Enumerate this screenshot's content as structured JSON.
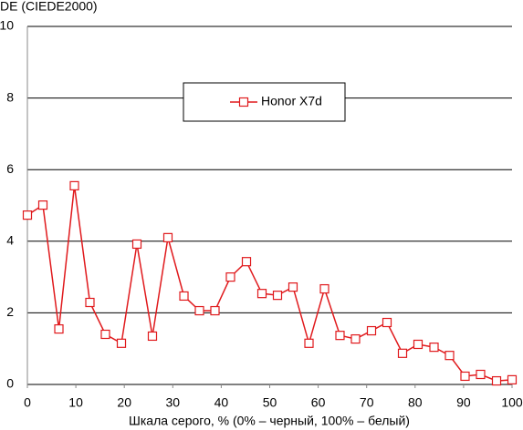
{
  "chart_data": {
    "type": "line",
    "y_label": "DE (CIEDE2000)",
    "x_label": "Шкала серого, % (0% – черный, 100% – белый)",
    "x": [
      0,
      3.2,
      6.5,
      9.7,
      12.9,
      16.1,
      19.4,
      22.6,
      25.8,
      29.0,
      32.3,
      35.5,
      38.7,
      41.9,
      45.2,
      48.4,
      51.6,
      54.8,
      58.1,
      61.3,
      64.5,
      67.7,
      71.0,
      74.2,
      77.4,
      80.6,
      83.9,
      87.1,
      90.3,
      93.5,
      96.8,
      100
    ],
    "series": [
      {
        "name": "Honor X7d",
        "color": "#e0191c",
        "values": [
          4.73,
          5.01,
          1.55,
          5.55,
          2.29,
          1.4,
          1.15,
          3.92,
          1.35,
          4.1,
          2.47,
          2.06,
          2.06,
          3.0,
          3.43,
          2.54,
          2.49,
          2.72,
          1.15,
          2.67,
          1.37,
          1.27,
          1.5,
          1.73,
          0.87,
          1.12,
          1.04,
          0.81,
          0.23,
          0.28,
          0.1,
          0.13
        ]
      }
    ],
    "xlim": [
      0,
      100
    ],
    "xticks": [
      0,
      10,
      20,
      30,
      40,
      50,
      60,
      70,
      80,
      90,
      100
    ],
    "ylim": [
      0,
      10
    ],
    "yticks": [
      0,
      2,
      4,
      6,
      8,
      10
    ],
    "grid": true,
    "legend": "top-center"
  }
}
